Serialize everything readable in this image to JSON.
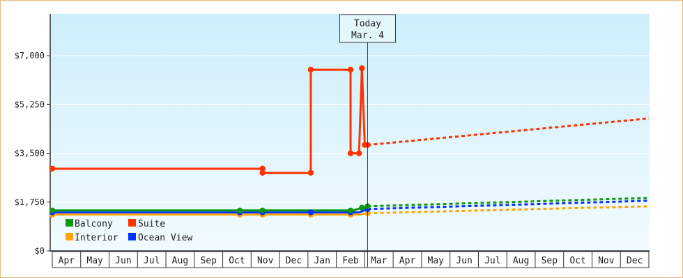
{
  "chart_data": {
    "type": "line",
    "title": "",
    "xlabel": "",
    "ylabel": "",
    "ylim": [
      0,
      8500
    ],
    "y_ticks": [
      0,
      1750,
      3500,
      5250,
      7000
    ],
    "y_tick_labels": [
      "$0",
      "$1,750",
      "$3,500",
      "$5,250",
      "$7,000"
    ],
    "x_categories": [
      "Apr",
      "May",
      "Jun",
      "Jul",
      "Aug",
      "Sep",
      "Oct",
      "Nov",
      "Dec",
      "Jan",
      "Feb",
      "Mar",
      "Apr",
      "May",
      "Jun",
      "Jul",
      "Aug",
      "Sep",
      "Oct",
      "Nov",
      "Dec"
    ],
    "x_unit": "month index (0 = start of first Apr shown)",
    "today_marker": {
      "line1": "Today",
      "line2": "Mar. 4",
      "x": 11.1
    },
    "legend_placement": "bottom-left",
    "series": [
      {
        "name": "Suite",
        "color": "#ff3300",
        "history": [
          [
            0,
            2950
          ],
          [
            7.4,
            2950
          ],
          [
            7.4,
            2800
          ],
          [
            9.1,
            2800
          ],
          [
            9.1,
            6500
          ],
          [
            10.5,
            6500
          ],
          [
            10.5,
            3500
          ],
          [
            10.8,
            3500
          ],
          [
            10.9,
            6550
          ],
          [
            11.0,
            3800
          ],
          [
            11.1,
            3800
          ]
        ],
        "markers": [
          [
            0,
            2950
          ],
          [
            7.4,
            2950
          ],
          [
            7.4,
            2800
          ],
          [
            9.1,
            2800
          ],
          [
            9.1,
            6500
          ],
          [
            10.5,
            6500
          ],
          [
            10.5,
            3500
          ],
          [
            10.8,
            3500
          ],
          [
            10.9,
            6550
          ],
          [
            11.0,
            3800
          ],
          [
            11.1,
            3800
          ]
        ],
        "forecast": [
          [
            11.1,
            3800
          ],
          [
            21,
            4750
          ]
        ]
      },
      {
        "name": "Balcony",
        "color": "#119911",
        "history": [
          [
            0,
            1450
          ],
          [
            10.6,
            1450
          ],
          [
            10.9,
            1550
          ],
          [
            11.1,
            1600
          ]
        ],
        "markers": [
          [
            0,
            1450
          ],
          [
            6.6,
            1450
          ],
          [
            7.4,
            1450
          ],
          [
            10.5,
            1450
          ],
          [
            10.9,
            1550
          ],
          [
            11.1,
            1600
          ]
        ],
        "forecast": [
          [
            11.1,
            1600
          ],
          [
            21,
            1900
          ]
        ]
      },
      {
        "name": "Ocean View",
        "color": "#0033ff",
        "history": [
          [
            0,
            1380
          ],
          [
            10.8,
            1380
          ],
          [
            11.1,
            1500
          ]
        ],
        "markers": [
          [
            0,
            1380
          ],
          [
            6.6,
            1380
          ],
          [
            7.4,
            1380
          ],
          [
            9.1,
            1380
          ],
          [
            10.5,
            1380
          ],
          [
            11.1,
            1500
          ]
        ],
        "forecast": [
          [
            11.1,
            1500
          ],
          [
            21,
            1800
          ]
        ]
      },
      {
        "name": "Interior",
        "color": "#ffa500",
        "history": [
          [
            0,
            1300
          ],
          [
            10.8,
            1300
          ],
          [
            11.1,
            1350
          ]
        ],
        "markers": [
          [
            0,
            1300
          ],
          [
            6.6,
            1300
          ],
          [
            7.4,
            1300
          ],
          [
            9.1,
            1300
          ],
          [
            10.5,
            1300
          ],
          [
            11.1,
            1350
          ]
        ],
        "forecast": [
          [
            11.1,
            1350
          ],
          [
            21,
            1600
          ]
        ]
      }
    ]
  },
  "legend": {
    "balcony": "Balcony",
    "suite": "Suite",
    "interior": "Interior",
    "ocean_view": "Ocean View"
  }
}
